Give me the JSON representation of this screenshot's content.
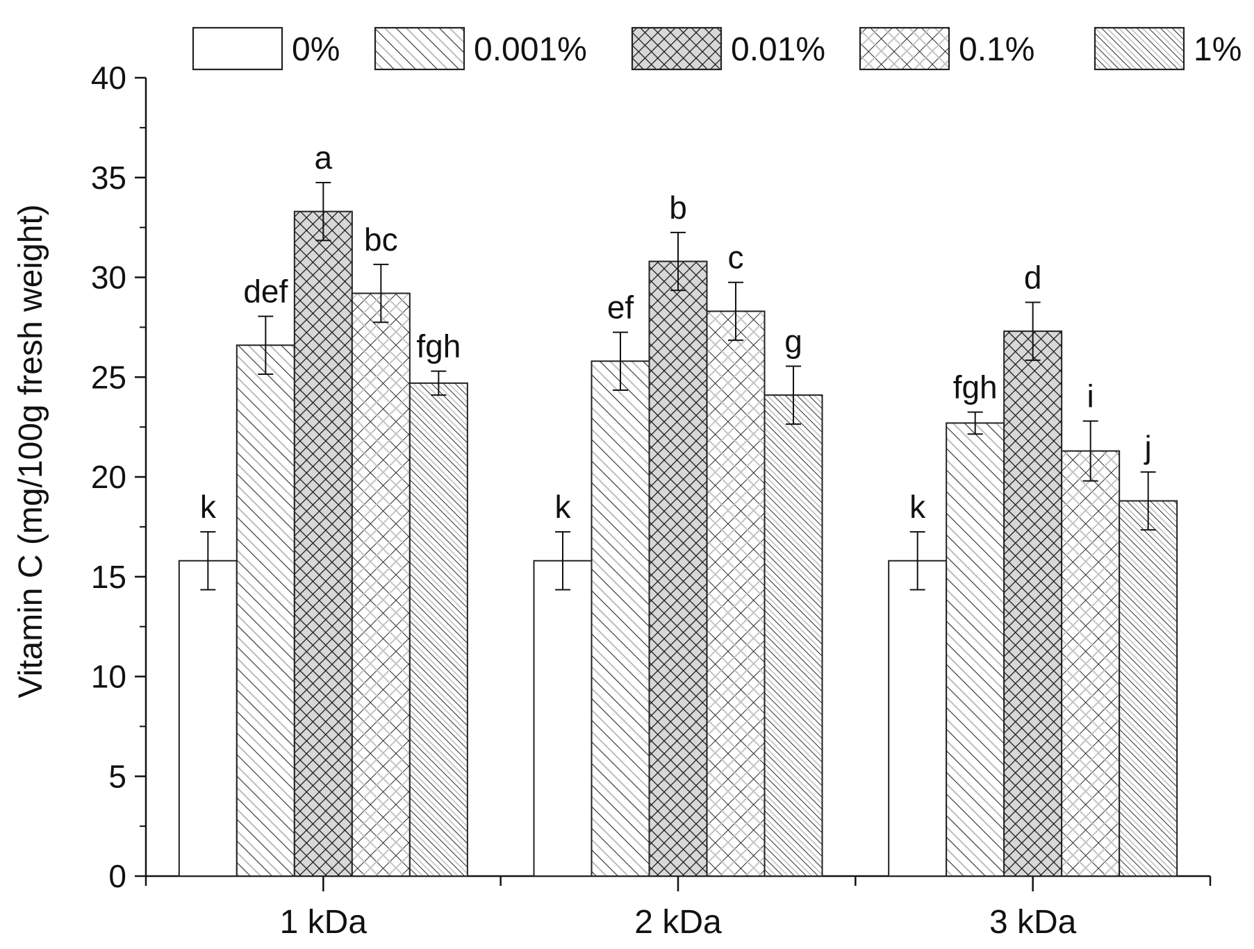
{
  "chart_data": {
    "type": "bar",
    "title": "",
    "xlabel": "",
    "ylabel": "Vitamin C (mg/100g fresh weight)",
    "ylim": [
      0,
      40
    ],
    "yticks": [
      0,
      5,
      10,
      15,
      20,
      25,
      30,
      35,
      40
    ],
    "grid": false,
    "legend_position": "top",
    "categories": [
      "1 kDa",
      "2 kDa",
      "3 kDa"
    ],
    "series": [
      {
        "name": "0%",
        "pattern": "none",
        "values": [
          15.8,
          15.8,
          15.8
        ],
        "errors": [
          1.45,
          1.45,
          1.45
        ],
        "labels": [
          "k",
          "k",
          "k"
        ]
      },
      {
        "name": "0.001%",
        "pattern": "diag-sparse",
        "values": [
          26.6,
          25.8,
          22.7
        ],
        "errors": [
          1.45,
          1.45,
          0.55
        ],
        "labels": [
          "def",
          "ef",
          "fgh"
        ]
      },
      {
        "name": "0.01%",
        "pattern": "crosshatch-dense",
        "values": [
          33.3,
          30.8,
          27.3
        ],
        "errors": [
          1.45,
          1.45,
          1.45
        ],
        "labels": [
          "a",
          "b",
          "d"
        ]
      },
      {
        "name": "0.1%",
        "pattern": "crosshatch-sparse",
        "values": [
          29.2,
          28.3,
          21.3
        ],
        "errors": [
          1.45,
          1.45,
          1.5
        ],
        "labels": [
          "bc",
          "c",
          "i"
        ]
      },
      {
        "name": "1%",
        "pattern": "diag-dense",
        "values": [
          24.7,
          24.1,
          18.8
        ],
        "errors": [
          0.6,
          1.45,
          1.45
        ],
        "labels": [
          "fgh",
          "g",
          "j"
        ]
      }
    ],
    "colors": {
      "axis": "#111111",
      "bar_stroke": "#222222",
      "hatch": "#333333",
      "hatch_light": "#b8b8b8",
      "background": "#ffffff"
    }
  }
}
